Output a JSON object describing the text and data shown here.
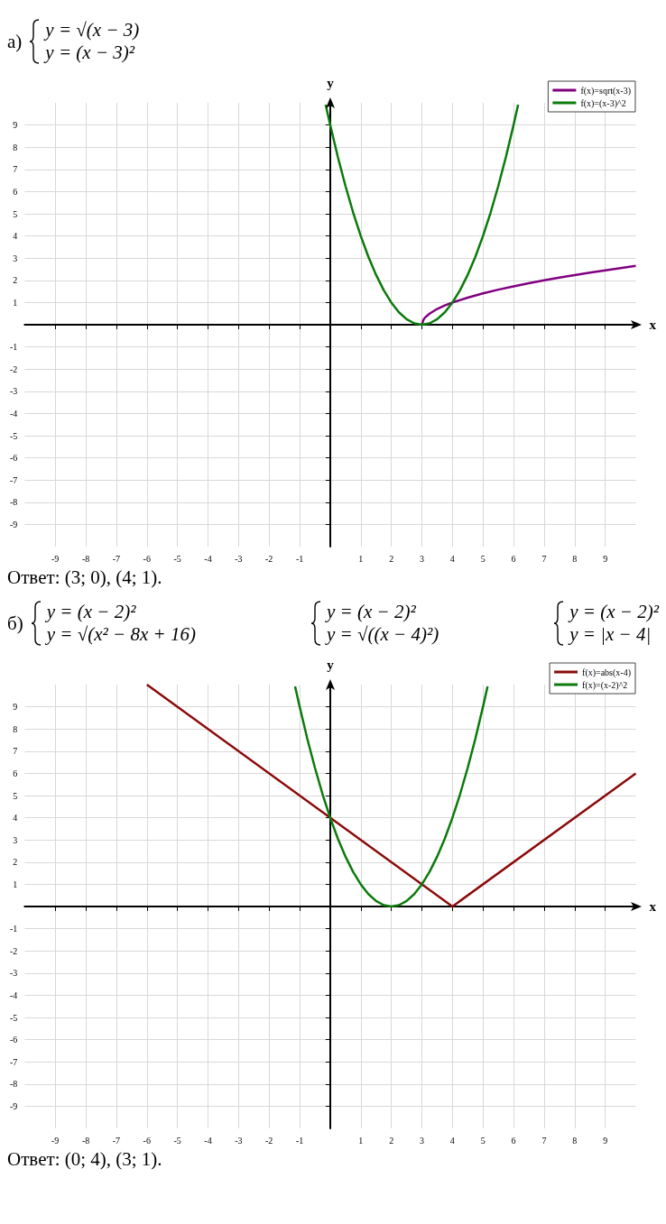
{
  "chart_data": [
    {
      "type": "line",
      "title": "а)",
      "subtitle": "y = √(x − 3)\ny = (x − 3)²",
      "xlabel": "x",
      "ylabel": "y",
      "xlim": [
        -10,
        10
      ],
      "ylim": [
        -10,
        10
      ],
      "xticks": [
        -9,
        -8,
        -7,
        -6,
        -5,
        -4,
        -3,
        -2,
        -1,
        1,
        2,
        3,
        4,
        5,
        6,
        7,
        8,
        9
      ],
      "yticks": [
        -9,
        -8,
        -7,
        -6,
        -5,
        -4,
        -3,
        -2,
        -1,
        1,
        2,
        3,
        4,
        5,
        6,
        7,
        8,
        9
      ],
      "grid": true,
      "legend": "top right",
      "annotations": [
        "Ответ: (3; 0), (4; 1)."
      ],
      "series": [
        {
          "name": "f(x)=sqrt(x-3)",
          "color": "#800080",
          "x": [
            3,
            3.05,
            3.1,
            3.25,
            3.5,
            3.75,
            4,
            4.5,
            5,
            5.5,
            6,
            6.5,
            7,
            7.5,
            8,
            8.5,
            9,
            9.5,
            10
          ],
          "values": [
            0,
            0.22,
            0.32,
            0.5,
            0.71,
            0.87,
            1,
            1.22,
            1.41,
            1.58,
            1.73,
            1.87,
            2,
            2.12,
            2.24,
            2.35,
            2.45,
            2.55,
            2.65
          ]
        },
        {
          "name": "f(x)=(x-3)^2",
          "color": "#0b7a0b",
          "x": [
            -0.15,
            0,
            0.25,
            0.5,
            0.75,
            1,
            1.25,
            1.5,
            1.75,
            2,
            2.25,
            2.5,
            2.75,
            3,
            3.25,
            3.5,
            3.75,
            4,
            4.25,
            4.5,
            4.75,
            5,
            5.25,
            5.5,
            5.75,
            6,
            6.15
          ],
          "values": [
            9.92,
            9,
            7.56,
            6.25,
            5.06,
            4,
            3.06,
            2.25,
            1.56,
            1,
            0.56,
            0.25,
            0.06,
            0,
            0.06,
            0.25,
            0.56,
            1,
            1.56,
            2.25,
            3.06,
            4,
            5.06,
            6.25,
            7.56,
            9,
            9.92
          ]
        }
      ]
    },
    {
      "type": "line",
      "title": "б)",
      "subtitle": "y = (x − 2)²\ny = √(x² − 8x + 16)",
      "xlabel": "x",
      "ylabel": "y",
      "xlim": [
        -10,
        10
      ],
      "ylim": [
        -10,
        10
      ],
      "xticks": [
        -9,
        -8,
        -7,
        -6,
        -5,
        -4,
        -3,
        -2,
        -1,
        1,
        2,
        3,
        4,
        5,
        6,
        7,
        8,
        9
      ],
      "yticks": [
        -9,
        -8,
        -7,
        -6,
        -5,
        -4,
        -3,
        -2,
        -1,
        1,
        2,
        3,
        4,
        5,
        6,
        7,
        8,
        9
      ],
      "grid": true,
      "legend": "top right",
      "annotations": [
        "y = (x − 2)²\ny = √((x − 4)²)",
        "y = (x − 2)²\ny = |x − 4|",
        "Ответ: (0; 4), (3; 1)."
      ],
      "series": [
        {
          "name": "f(x)=abs(x-4)",
          "color": "#8b0a0a",
          "x": [
            -6,
            4,
            10
          ],
          "values": [
            10,
            0,
            6
          ]
        },
        {
          "name": "f(x)=(x-2)^2",
          "color": "#0b7a0b",
          "x": [
            -1.15,
            -1,
            -0.75,
            -0.5,
            -0.25,
            0,
            0.25,
            0.5,
            0.75,
            1,
            1.25,
            1.5,
            1.75,
            2,
            2.25,
            2.5,
            2.75,
            3,
            3.25,
            3.5,
            3.75,
            4,
            4.25,
            4.5,
            4.75,
            5,
            5.15
          ],
          "values": [
            9.92,
            9,
            7.56,
            6.25,
            5.06,
            4,
            3.06,
            2.25,
            1.56,
            1,
            0.56,
            0.25,
            0.06,
            0,
            0.06,
            0.25,
            0.56,
            1,
            1.56,
            2.25,
            3.06,
            4,
            5.06,
            6.25,
            7.56,
            9,
            9.92
          ]
        }
      ]
    }
  ]
}
